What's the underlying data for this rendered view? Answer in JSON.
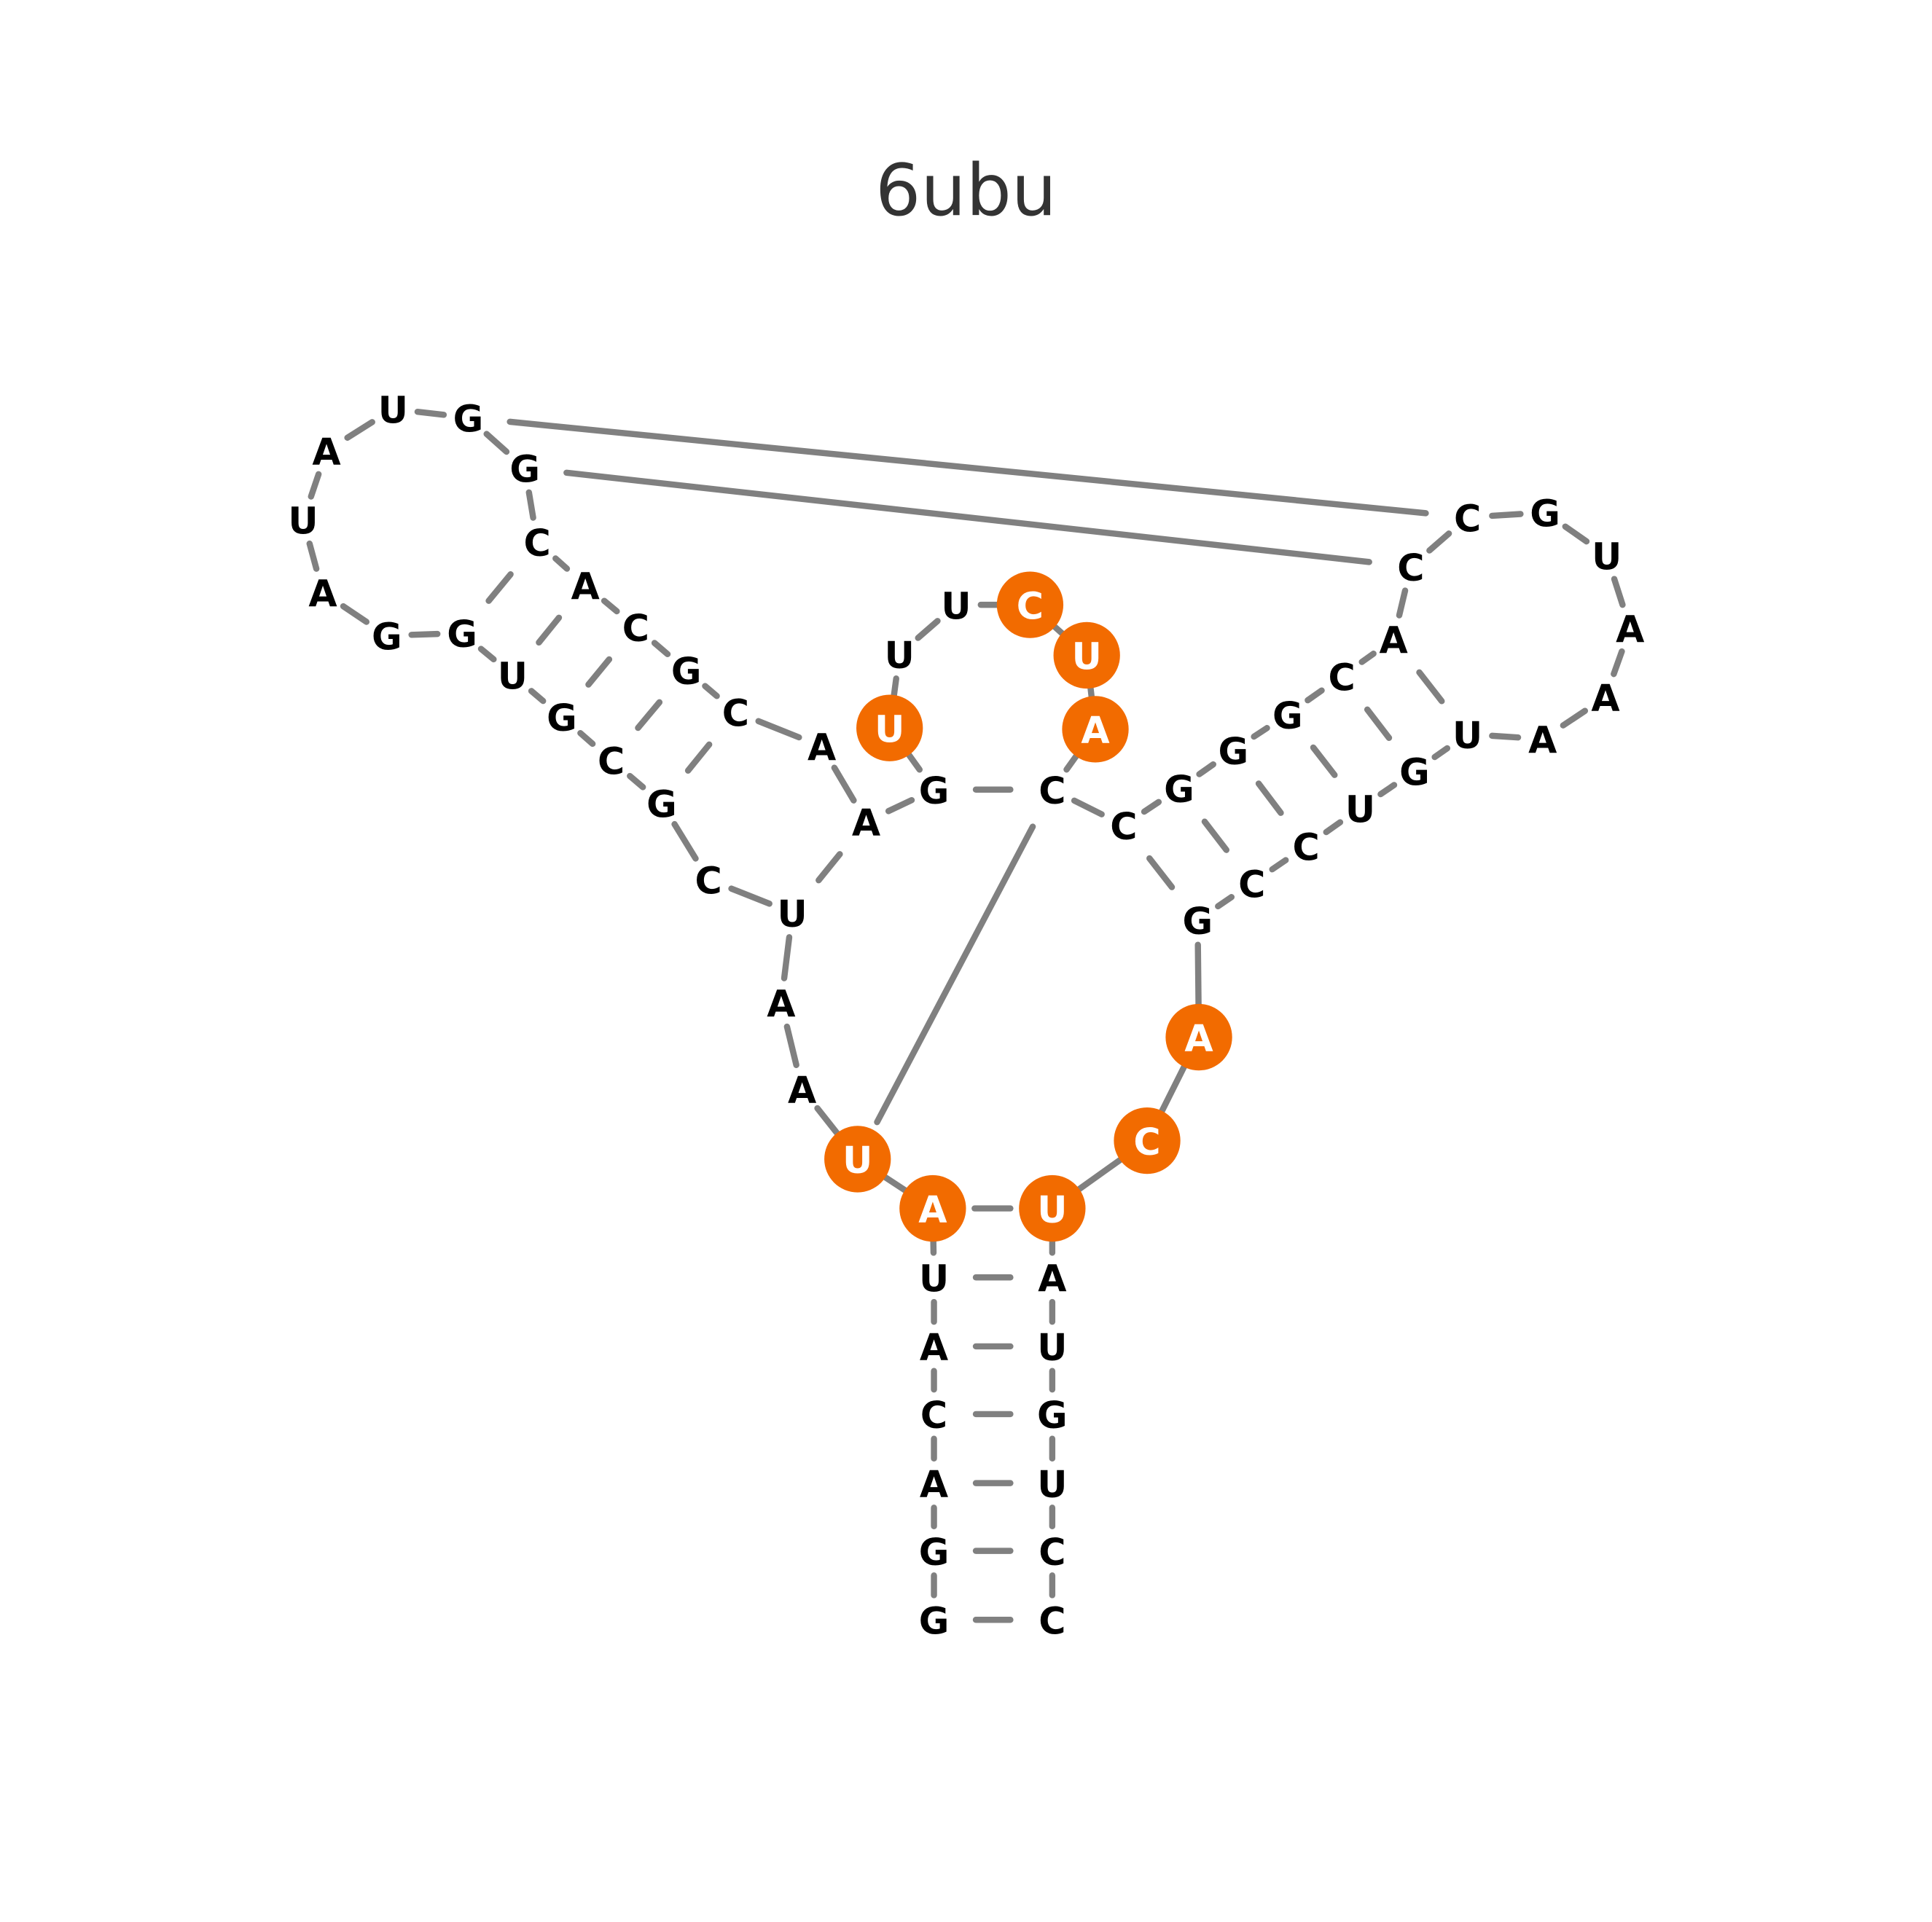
{
  "title": "6ubu",
  "highlight_color": "#f26b00",
  "nodes": [
    {
      "label": "G"
    },
    {
      "label": "G"
    },
    {
      "label": "A"
    },
    {
      "label": "C"
    },
    {
      "label": "A"
    },
    {
      "label": "U"
    },
    {
      "label": "A",
      "highlight": true
    },
    {
      "label": "U",
      "highlight": true
    },
    {
      "label": "A"
    },
    {
      "label": "A"
    },
    {
      "label": "U"
    },
    {
      "label": "C"
    },
    {
      "label": "G"
    },
    {
      "label": "C"
    },
    {
      "label": "G"
    },
    {
      "label": "U"
    },
    {
      "label": "G"
    },
    {
      "label": "G"
    },
    {
      "label": "A"
    },
    {
      "label": "U"
    },
    {
      "label": "A"
    },
    {
      "label": "U"
    },
    {
      "label": "G"
    },
    {
      "label": "G"
    },
    {
      "label": "C"
    },
    {
      "label": "A"
    },
    {
      "label": "C"
    },
    {
      "label": "G"
    },
    {
      "label": "C"
    },
    {
      "label": "A"
    },
    {
      "label": "A"
    },
    {
      "label": "G"
    },
    {
      "label": "U",
      "highlight": true
    },
    {
      "label": "U"
    },
    {
      "label": "U"
    },
    {
      "label": "C",
      "highlight": true
    },
    {
      "label": "U",
      "highlight": true
    },
    {
      "label": "A",
      "highlight": true
    },
    {
      "label": "C"
    },
    {
      "label": "C"
    },
    {
      "label": "G"
    },
    {
      "label": "G"
    },
    {
      "label": "G"
    },
    {
      "label": "C"
    },
    {
      "label": "A"
    },
    {
      "label": "C"
    },
    {
      "label": "C"
    },
    {
      "label": "G"
    },
    {
      "label": "U"
    },
    {
      "label": "A"
    },
    {
      "label": "A"
    },
    {
      "label": "A"
    },
    {
      "label": "U"
    },
    {
      "label": "G"
    },
    {
      "label": "U"
    },
    {
      "label": "C"
    },
    {
      "label": "C"
    },
    {
      "label": "G"
    },
    {
      "label": "A",
      "highlight": true
    },
    {
      "label": "C",
      "highlight": true
    },
    {
      "label": "U",
      "highlight": true
    },
    {
      "label": "A"
    },
    {
      "label": "U"
    },
    {
      "label": "G"
    },
    {
      "label": "U"
    },
    {
      "label": "C"
    },
    {
      "label": "C"
    }
  ]
}
